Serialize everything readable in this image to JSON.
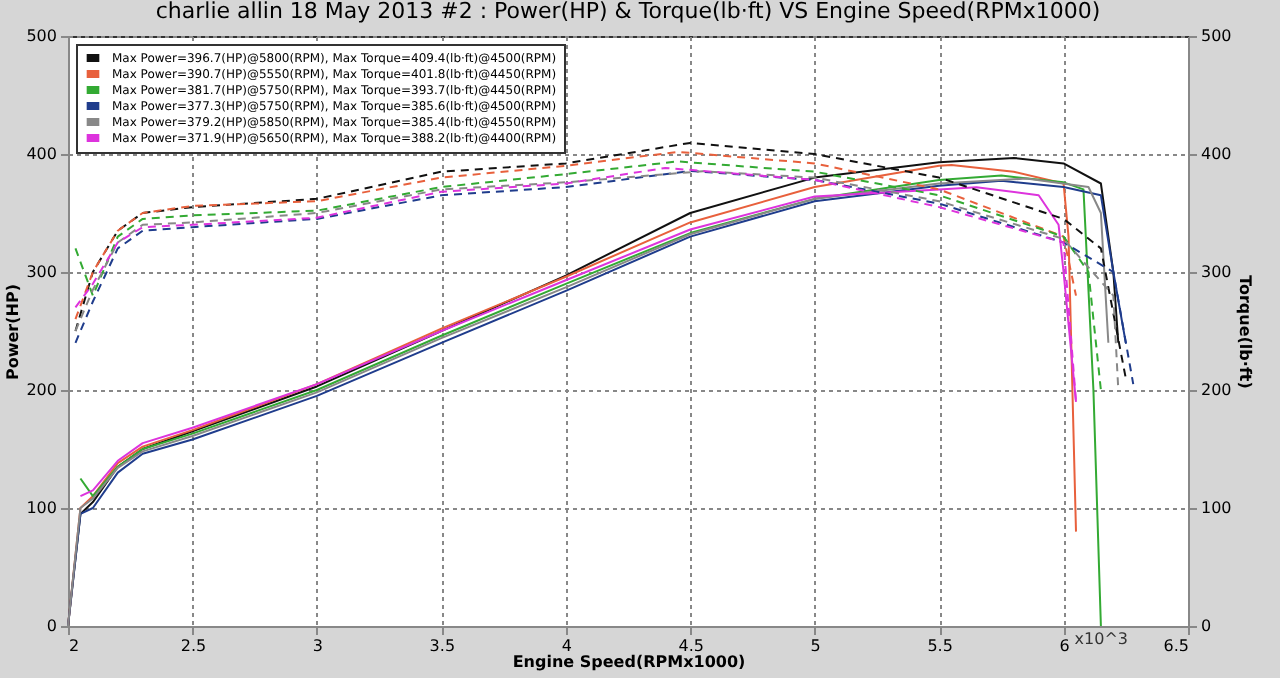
{
  "chart_data": {
    "type": "line",
    "title": "charlie allin 18 May 2013 #2 : Power(HP) & Torque(lb·ft) VS Engine Speed(RPMx1000)",
    "xlabel": "Engine Speed(RPMx1000)",
    "ylabel": "Power(HP)",
    "y2label": "Torque(lb·ft)",
    "xlim": [
      2,
      6.5
    ],
    "xticks": [
      2,
      2.5,
      3,
      3.5,
      4,
      4.5,
      5,
      5.5,
      6,
      6.5
    ],
    "ylim": [
      0,
      500
    ],
    "yticks": [
      0,
      100,
      200,
      300,
      400,
      500
    ],
    "y2lim": [
      0,
      500
    ],
    "y2ticks": [
      0,
      100,
      200,
      300,
      400,
      500
    ],
    "grid": true,
    "legend": "top left",
    "annotations": [
      "x10^3"
    ],
    "series": [
      {
        "name": "Max Power=396.7(HP)@5800(RPM), Max Torque=409.4(lb·ft)@4500(RPM)",
        "color": "#111111",
        "line_style": "solid",
        "x": [
          2.0,
          2.05,
          2.1,
          2.2,
          2.3,
          2.5,
          3.0,
          3.5,
          4.0,
          4.5,
          5.0,
          5.5,
          5.8,
          6.0,
          6.15,
          6.2,
          6.22
        ],
        "values": [
          0,
          95,
          105,
          135,
          150,
          165,
          203,
          250,
          297,
          350,
          380,
          393,
          396.7,
          392,
          375,
          300,
          240
        ]
      },
      {
        "name": "Max Power=390.7(HP)@5550(RPM), Max Torque=401.8(lb·ft)@4450(RPM)",
        "color": "#e8603c",
        "line_style": "solid",
        "x": [
          2.0,
          2.05,
          2.1,
          2.2,
          2.3,
          2.5,
          3.0,
          3.5,
          4.0,
          4.5,
          5.0,
          5.5,
          5.55,
          5.8,
          6.0,
          6.02,
          6.05
        ],
        "values": [
          0,
          100,
          110,
          138,
          152,
          166,
          205,
          252,
          296,
          342,
          372,
          390,
          390.7,
          385,
          375,
          330,
          80
        ]
      },
      {
        "name": "Max Power=381.7(HP)@5750(RPM), Max Torque=393.7(lb·ft)@4450(RPM)",
        "color": "#33aa33",
        "line_style": "solid",
        "x": [
          2.05,
          2.1,
          2.2,
          2.3,
          2.5,
          3.0,
          3.5,
          4.0,
          4.5,
          5.0,
          5.5,
          5.75,
          6.0,
          6.08,
          6.12,
          6.15
        ],
        "values": [
          125,
          110,
          135,
          150,
          163,
          200,
          246,
          290,
          333,
          362,
          378,
          381.7,
          376,
          370,
          200,
          0
        ]
      },
      {
        "name": "Max Power=377.3(HP)@5750(RPM), Max Torque=385.6(lb·ft)@4500(RPM)",
        "color": "#1f3c8c",
        "line_style": "solid",
        "x": [
          2.0,
          2.05,
          2.1,
          2.2,
          2.3,
          2.5,
          3.0,
          3.5,
          4.0,
          4.5,
          5.0,
          5.5,
          5.75,
          6.0,
          6.15,
          6.2,
          6.25
        ],
        "values": [
          0,
          95,
          100,
          130,
          146,
          158,
          195,
          240,
          284,
          330,
          360,
          373,
          377.3,
          372,
          365,
          300,
          240
        ]
      },
      {
        "name": "Max Power=379.2(HP)@5850(RPM), Max Torque=385.4(lb·ft)@4550(RPM)",
        "color": "#888888",
        "line_style": "solid",
        "x": [
          2.0,
          2.05,
          2.1,
          2.2,
          2.3,
          2.5,
          3.0,
          3.5,
          4.0,
          4.5,
          5.0,
          5.5,
          5.85,
          6.1,
          6.15,
          6.18
        ],
        "values": [
          0,
          100,
          108,
          134,
          148,
          161,
          198,
          244,
          287,
          332,
          362,
          375,
          379.2,
          372,
          350,
          240
        ]
      },
      {
        "name": "Max Power=371.9(HP)@5650(RPM), Max Torque=388.2(lb·ft)@4400(RPM)",
        "color": "#dd33dd",
        "line_style": "solid",
        "x": [
          2.05,
          2.1,
          2.2,
          2.3,
          2.5,
          3.0,
          3.5,
          4.0,
          4.5,
          5.0,
          5.5,
          5.65,
          5.9,
          5.98,
          6.0,
          6.05
        ],
        "values": [
          110,
          115,
          140,
          155,
          168,
          205,
          250,
          293,
          336,
          364,
          370,
          371.9,
          365,
          340,
          300,
          190
        ]
      },
      {
        "color": "#111111",
        "line_style": "dashed",
        "axis": "y2",
        "x": [
          2.03,
          2.1,
          2.2,
          2.3,
          2.5,
          3.0,
          3.5,
          4.0,
          4.5,
          5.0,
          5.5,
          6.0,
          6.15,
          6.25
        ],
        "values": [
          250,
          300,
          335,
          350,
          355,
          362,
          385,
          392,
          409.4,
          400,
          380,
          345,
          320,
          210
        ]
      },
      {
        "color": "#e8603c",
        "line_style": "dashed",
        "axis": "y2",
        "x": [
          2.03,
          2.1,
          2.2,
          2.3,
          2.5,
          3.0,
          3.5,
          4.0,
          4.45,
          5.0,
          5.5,
          6.0,
          6.05
        ],
        "values": [
          260,
          300,
          335,
          350,
          356,
          360,
          380,
          390,
          401.8,
          392,
          370,
          330,
          280
        ]
      },
      {
        "color": "#33aa33",
        "line_style": "dashed",
        "axis": "y2",
        "x": [
          2.03,
          2.1,
          2.2,
          2.3,
          2.5,
          3.0,
          3.5,
          4.0,
          4.45,
          5.0,
          5.5,
          6.0,
          6.1,
          6.15
        ],
        "values": [
          320,
          280,
          330,
          345,
          348,
          352,
          372,
          383,
          393.7,
          385,
          365,
          330,
          300,
          200
        ]
      },
      {
        "color": "#1f3c8c",
        "line_style": "dashed",
        "axis": "y2",
        "x": [
          2.03,
          2.1,
          2.2,
          2.3,
          2.5,
          3.0,
          3.5,
          4.0,
          4.5,
          5.0,
          5.5,
          6.0,
          6.2,
          6.28
        ],
        "values": [
          240,
          275,
          320,
          335,
          338,
          345,
          365,
          372,
          385.6,
          378,
          358,
          325,
          300,
          205
        ]
      },
      {
        "color": "#888888",
        "line_style": "dashed",
        "axis": "y2",
        "x": [
          2.03,
          2.1,
          2.2,
          2.3,
          2.5,
          3.0,
          3.5,
          4.0,
          4.55,
          5.0,
          5.5,
          6.0,
          6.2,
          6.22
        ],
        "values": [
          250,
          285,
          325,
          340,
          342,
          350,
          370,
          376,
          385.4,
          380,
          360,
          328,
          280,
          200
        ]
      },
      {
        "color": "#dd33dd",
        "line_style": "dashed",
        "axis": "y2",
        "x": [
          2.03,
          2.1,
          2.2,
          2.3,
          2.5,
          3.0,
          3.5,
          4.0,
          4.4,
          5.0,
          5.5,
          6.0,
          6.05
        ],
        "values": [
          270,
          290,
          325,
          338,
          340,
          346,
          368,
          375,
          388.2,
          378,
          355,
          325,
          190
        ]
      }
    ]
  }
}
